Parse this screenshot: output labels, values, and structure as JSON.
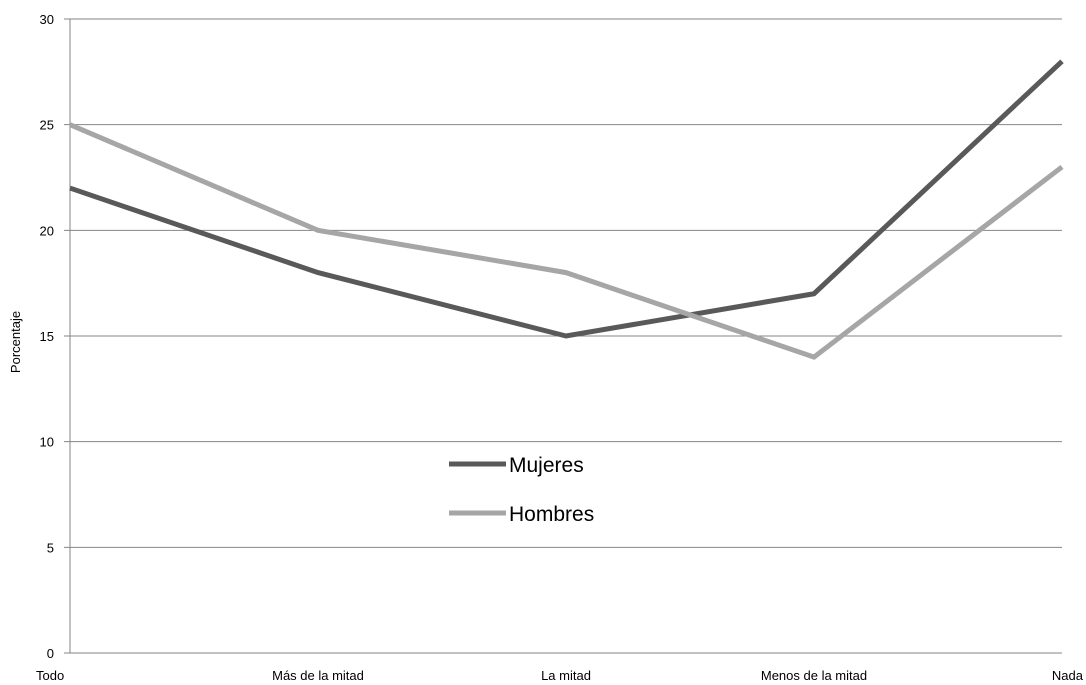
{
  "chart_data": {
    "type": "line",
    "ylabel": "Porcentaje",
    "xlabel": "",
    "categories": [
      "Todo",
      "Más de la mitad",
      "La mitad",
      "Menos de la mitad",
      "Nada"
    ],
    "ylim": [
      0,
      30
    ],
    "yticks": [
      0,
      5,
      10,
      15,
      20,
      25,
      30
    ],
    "grid": "horizontal",
    "legend_position": "center",
    "series": [
      {
        "name": "Mujeres",
        "values": [
          22,
          18,
          15,
          17,
          28
        ],
        "color": "#595959"
      },
      {
        "name": "Hombres",
        "values": [
          25,
          20,
          18,
          14,
          23
        ],
        "color": "#a6a6a6"
      }
    ]
  }
}
